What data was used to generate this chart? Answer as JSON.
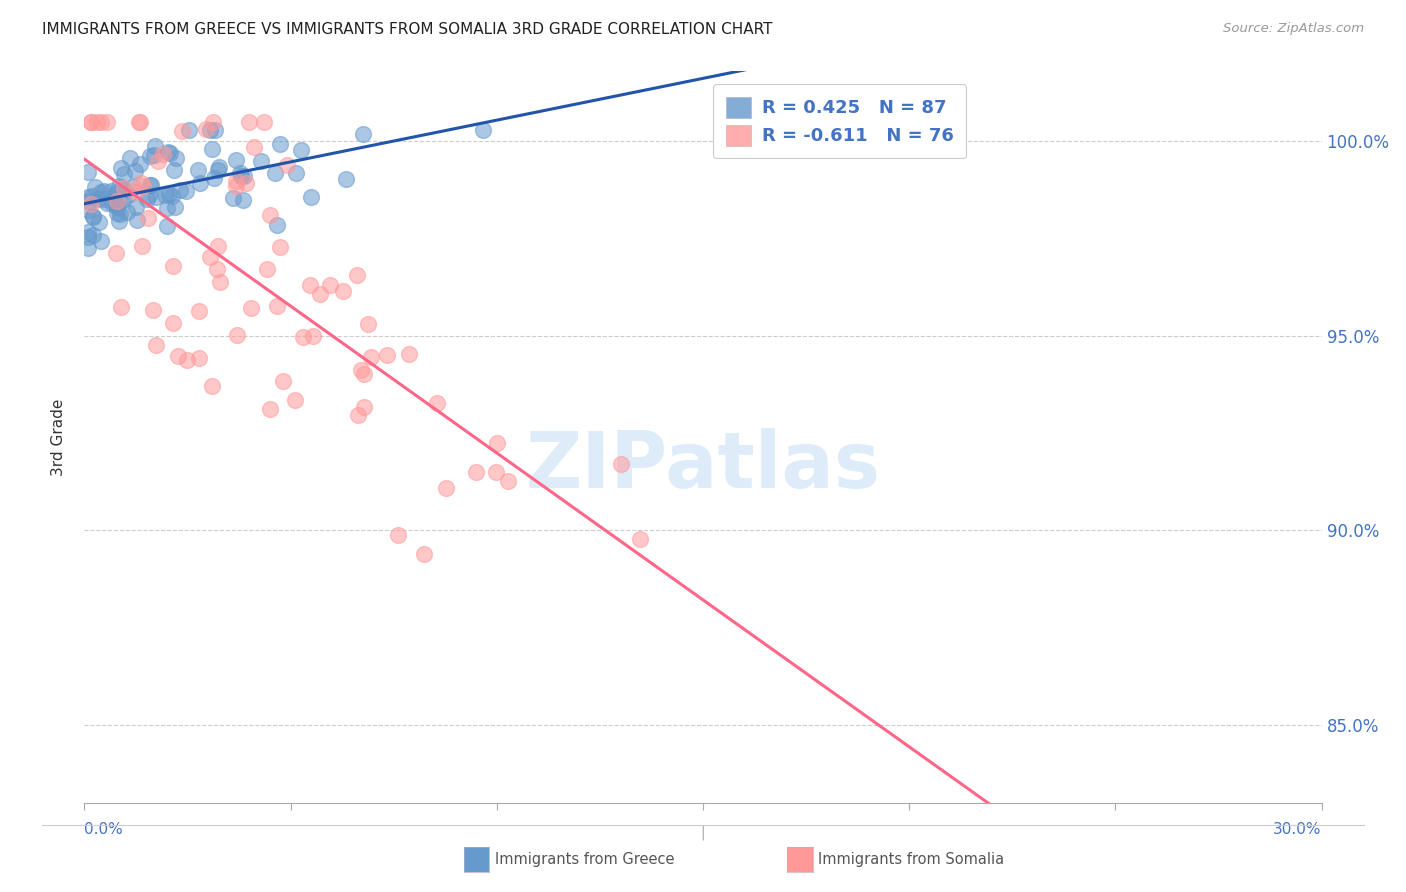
{
  "title": "IMMIGRANTS FROM GREECE VS IMMIGRANTS FROM SOMALIA 3RD GRADE CORRELATION CHART",
  "source": "Source: ZipAtlas.com",
  "ylabel": "3rd Grade",
  "x_range": [
    0.0,
    0.3
  ],
  "y_range": [
    83.0,
    101.8
  ],
  "greece_color": "#6699CC",
  "somalia_color": "#FF9999",
  "greece_line_color": "#2255AA",
  "somalia_line_color": "#FF6688",
  "R_greece": 0.425,
  "N_greece": 87,
  "R_somalia": -0.611,
  "N_somalia": 76,
  "y_tick_vals": [
    85.0,
    90.0,
    95.0,
    100.0
  ],
  "y_tick_labels": [
    "85.0%",
    "90.0%",
    "95.0%",
    "100.0%"
  ],
  "grid_color": "#cccccc",
  "watermark_color": "#d0e4f7",
  "legend_text_blue": "R = 0.425   N = 87",
  "legend_text_pink": "R = -0.611   N = 76",
  "bottom_label_greece": "Immigrants from Greece",
  "bottom_label_somalia": "Immigrants from Somalia"
}
